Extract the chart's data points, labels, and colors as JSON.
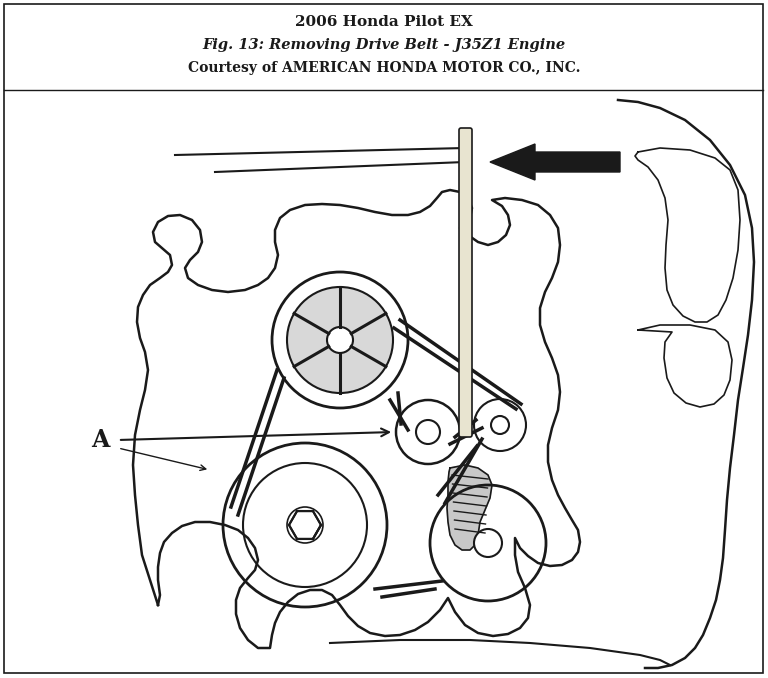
{
  "title_line1": "2006 Honda Pilot EX",
  "title_line2": "Fig. 13: Removing Drive Belt - J35Z1 Engine",
  "title_line3": "Courtesy of AMERICAN HONDA MOTOR CO., INC.",
  "bg_color": "#ffffff",
  "lc": "#1a1a1a",
  "fig_width": 7.68,
  "fig_height": 6.78,
  "dpi": 100
}
